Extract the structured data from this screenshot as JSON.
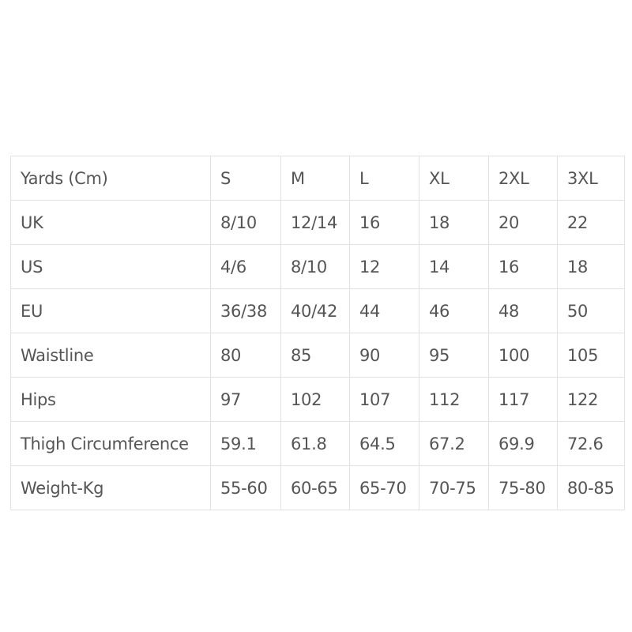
{
  "table": {
    "header": [
      "Yards (Cm)",
      "S",
      "M",
      "L",
      "XL",
      "2XL",
      "3XL"
    ],
    "rows": [
      [
        "UK",
        "8/10",
        "12/14",
        "16",
        "18",
        "20",
        "22"
      ],
      [
        "US",
        "4/6",
        "8/10",
        "12",
        "14",
        "16",
        "18"
      ],
      [
        "EU",
        "36/38",
        "40/42",
        "44",
        "46",
        "48",
        "50"
      ],
      [
        "Waistline",
        "80",
        "85",
        "90",
        "95",
        "100",
        "105"
      ],
      [
        "Hips",
        "97",
        "102",
        "107",
        "112",
        "117",
        "122"
      ],
      [
        "Thigh Circumference",
        "59.1",
        "61.8",
        "64.5",
        "67.2",
        "69.9",
        "72.6"
      ],
      [
        "Weight-Kg",
        "55-60",
        "60-65",
        "65-70",
        "70-75",
        "75-80",
        "80-85"
      ]
    ]
  }
}
